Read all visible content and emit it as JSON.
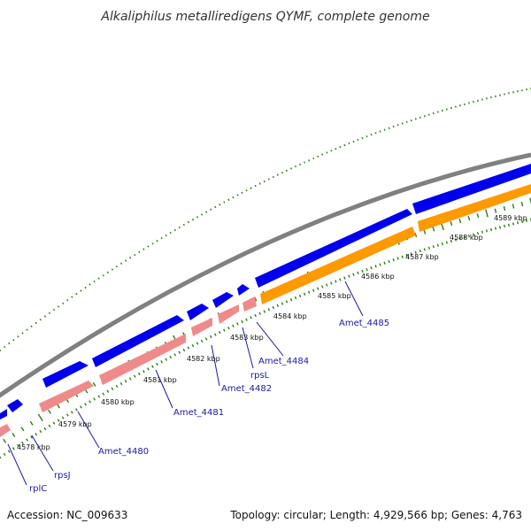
{
  "title": "Alkaliphilus metalliredigens QYMF, complete genome",
  "accession": "Accession: NC_009633",
  "summary": "Topology: circular; Length: 4,929,566 bp; Genes: 4,763",
  "colors": {
    "backbone": "#808080",
    "forward_cds": "#0000ee",
    "reverse_cds_pink": "#f08a8a",
    "reverse_cds_orange": "#ff9900",
    "ticks": "#2e7d16",
    "gene_label": "#1a1aa6"
  },
  "scale_labels": [
    "4578 kbp",
    "4579 kbp",
    "4580 kbp",
    "4581 kbp",
    "4582 kbp",
    "4583 kbp",
    "4584 kbp",
    "4585 kbp",
    "4586 kbp",
    "4587 kbp",
    "4588 kbp",
    "4589 kbp"
  ],
  "gene_labels": [
    "rplC",
    "rpsJ",
    "Amet_4480",
    "Amet_4481",
    "Amet_4482",
    "rpsL",
    "Amet_4484",
    "Amet_4485"
  ]
}
